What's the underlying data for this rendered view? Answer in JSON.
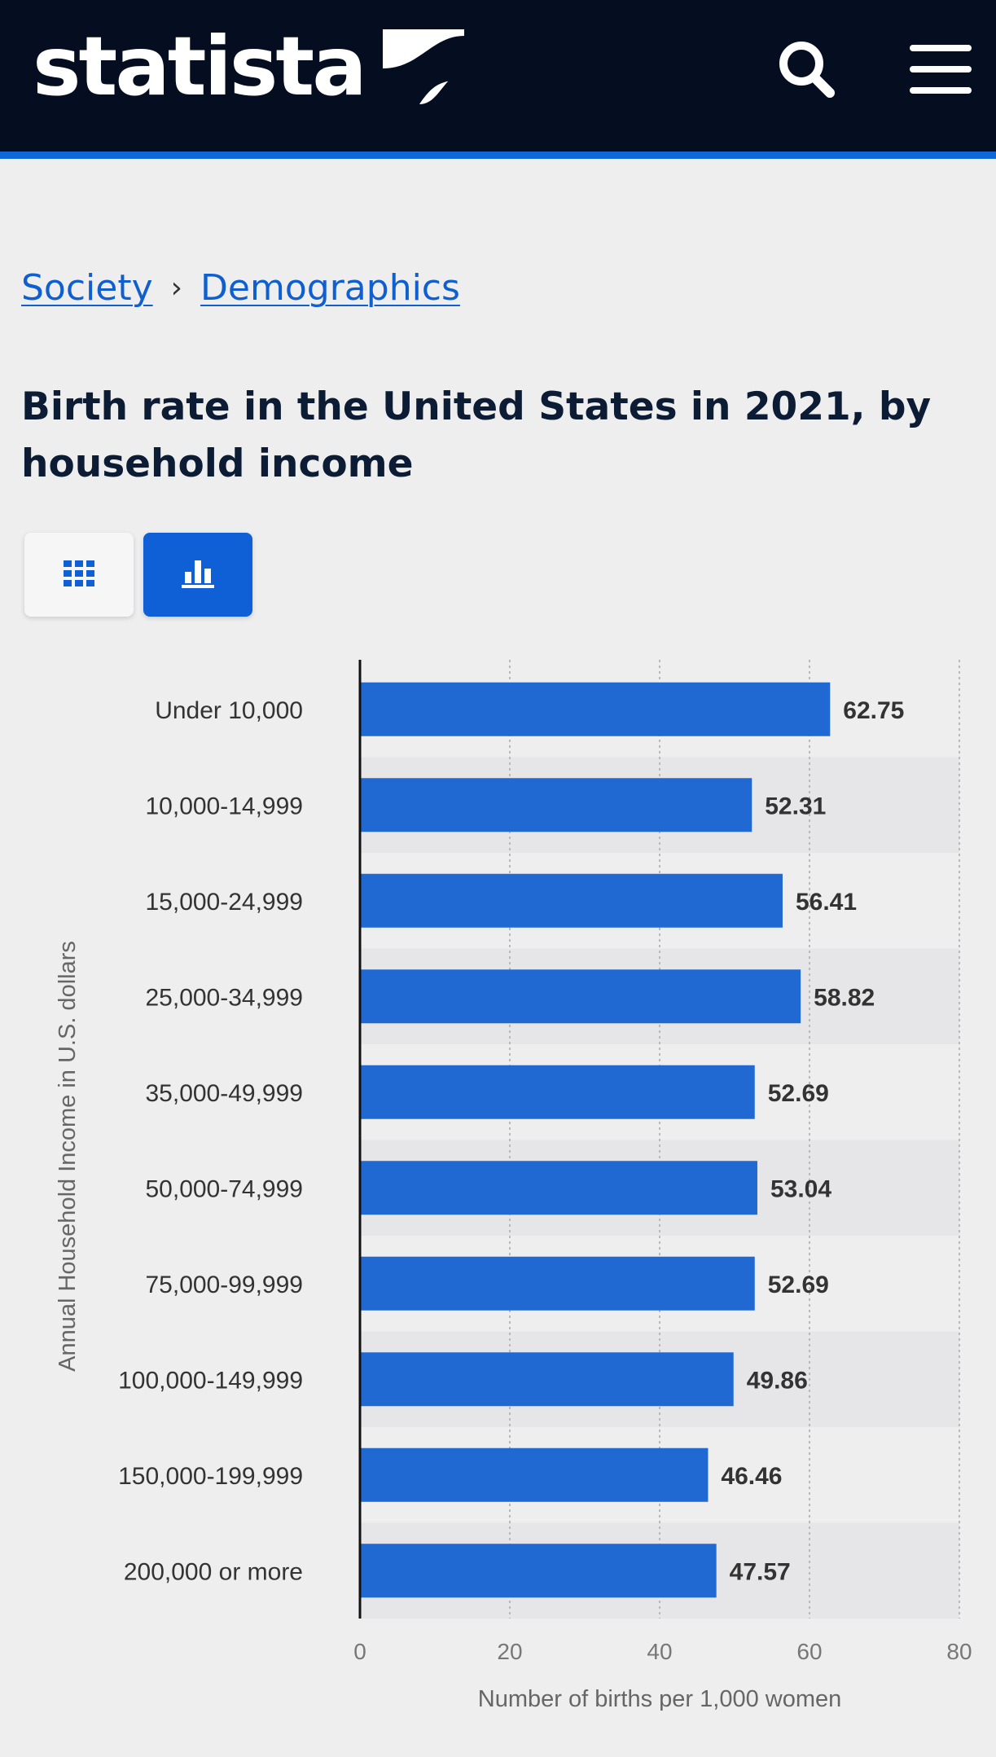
{
  "header": {
    "logo_text": "statista",
    "icons": {
      "search": "search-icon",
      "menu": "hamburger-menu-icon"
    },
    "background": "#050e21",
    "accent": "#0f68d8"
  },
  "breadcrumb": {
    "items": [
      "Society",
      "Demographics"
    ],
    "separator": "›"
  },
  "page": {
    "title": "Birth rate in the United States in 2021, by household income"
  },
  "view_toggle": {
    "options": [
      {
        "name": "table",
        "icon": "table-grid-icon",
        "active": false
      },
      {
        "name": "chart",
        "icon": "bar-chart-icon",
        "active": true
      }
    ]
  },
  "chart_data": {
    "type": "bar",
    "orientation": "horizontal",
    "categories": [
      "Under 10,000",
      "10,000-14,999",
      "15,000-24,999",
      "25,000-34,999",
      "35,000-49,999",
      "50,000-74,999",
      "75,000-99,999",
      "100,000-149,999",
      "150,000-199,999",
      "200,000 or more"
    ],
    "values": [
      62.75,
      52.31,
      56.41,
      58.82,
      52.69,
      53.04,
      52.69,
      49.86,
      46.46,
      47.57
    ],
    "value_labels": [
      "62.75",
      "52.31",
      "56.41",
      "58.82",
      "52.69",
      "53.04",
      "52.69",
      "49.86",
      "46.46",
      "47.57"
    ],
    "xlabel": "Number of births per 1,000 women",
    "ylabel": "Annual Household Income in U.S. dollars",
    "xlim": [
      0,
      80
    ],
    "x_ticks": [
      "0",
      "20",
      "40",
      "60",
      "80"
    ],
    "grid": "vertical dotted",
    "bar_color": "#2069d2"
  }
}
